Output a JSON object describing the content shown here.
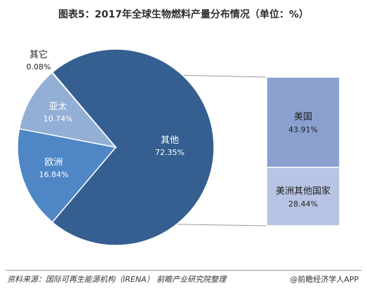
{
  "title": "图表5：2017年全球生物燃料产量分布情况（单位：%）",
  "source": "资料来源：国际可再生能源机构（IRENA） 前瞻产业研究院整理",
  "brand": "@前瞻经济学人APP",
  "chart_data": {
    "type": "pie",
    "title": "图表5：2017年全球生物燃料产量分布情况（单位：%）",
    "slices": [
      {
        "label": "其他",
        "value": 72.35,
        "display": "72.35%",
        "color": "#355f91"
      },
      {
        "label": "欧洲",
        "value": 16.84,
        "display": "16.84%",
        "color": "#4f86c6"
      },
      {
        "label": "亚太",
        "value": 10.74,
        "display": "10.74%",
        "color": "#93afd6"
      },
      {
        "label": "其它",
        "value": 0.08,
        "display": "0.08%",
        "color": "#c9d5ea"
      }
    ],
    "breakdown": {
      "of": "其他",
      "type": "stacked-bar",
      "items": [
        {
          "label": "美国",
          "value": 43.91,
          "display": "43.91%",
          "color": "#8aa0cf"
        },
        {
          "label": "美洲其他国家",
          "value": 28.44,
          "display": "28.44%",
          "color": "#b7c4e3"
        }
      ]
    }
  }
}
